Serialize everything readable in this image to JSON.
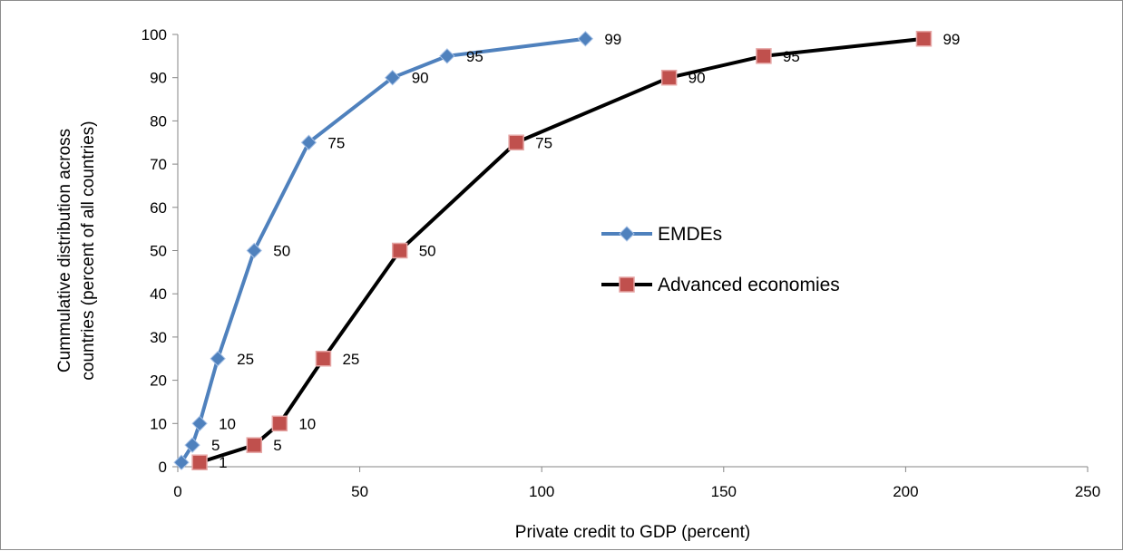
{
  "chart_data": {
    "type": "line",
    "title": "",
    "xlabel": "Private credit to GDP (percent)",
    "ylabel_lines": [
      "Cummulative distribution across",
      "countries (percent of all countries)"
    ],
    "xlim": [
      0,
      250
    ],
    "ylim": [
      0,
      100
    ],
    "x_ticks": [
      0,
      50,
      100,
      150,
      200,
      250
    ],
    "y_ticks": [
      0,
      10,
      20,
      30,
      40,
      50,
      60,
      70,
      80,
      90,
      100
    ],
    "grid": false,
    "legend_position": "center-right",
    "series": [
      {
        "name": "EMDEs",
        "color": "#4f81bd",
        "marker": "diamond",
        "points": [
          {
            "x": 1,
            "y": 1,
            "label": ""
          },
          {
            "x": 4,
            "y": 5,
            "label": "5"
          },
          {
            "x": 6,
            "y": 10,
            "label": "10"
          },
          {
            "x": 11,
            "y": 25,
            "label": "25"
          },
          {
            "x": 21,
            "y": 50,
            "label": "50"
          },
          {
            "x": 36,
            "y": 75,
            "label": "75"
          },
          {
            "x": 59,
            "y": 90,
            "label": "90"
          },
          {
            "x": 74,
            "y": 95,
            "label": "95"
          },
          {
            "x": 112,
            "y": 99,
            "label": "99"
          }
        ]
      },
      {
        "name": "Advanced economies",
        "color": "#000000",
        "marker_color": "#c0504d",
        "marker": "square",
        "points": [
          {
            "x": 6,
            "y": 1,
            "label": "1"
          },
          {
            "x": 21,
            "y": 5,
            "label": "5"
          },
          {
            "x": 28,
            "y": 10,
            "label": "10"
          },
          {
            "x": 40,
            "y": 25,
            "label": "25"
          },
          {
            "x": 61,
            "y": 50,
            "label": "50"
          },
          {
            "x": 93,
            "y": 75,
            "label": "75"
          },
          {
            "x": 135,
            "y": 90,
            "label": "90"
          },
          {
            "x": 161,
            "y": 95,
            "label": "95"
          },
          {
            "x": 205,
            "y": 99,
            "label": "99"
          }
        ]
      }
    ]
  }
}
